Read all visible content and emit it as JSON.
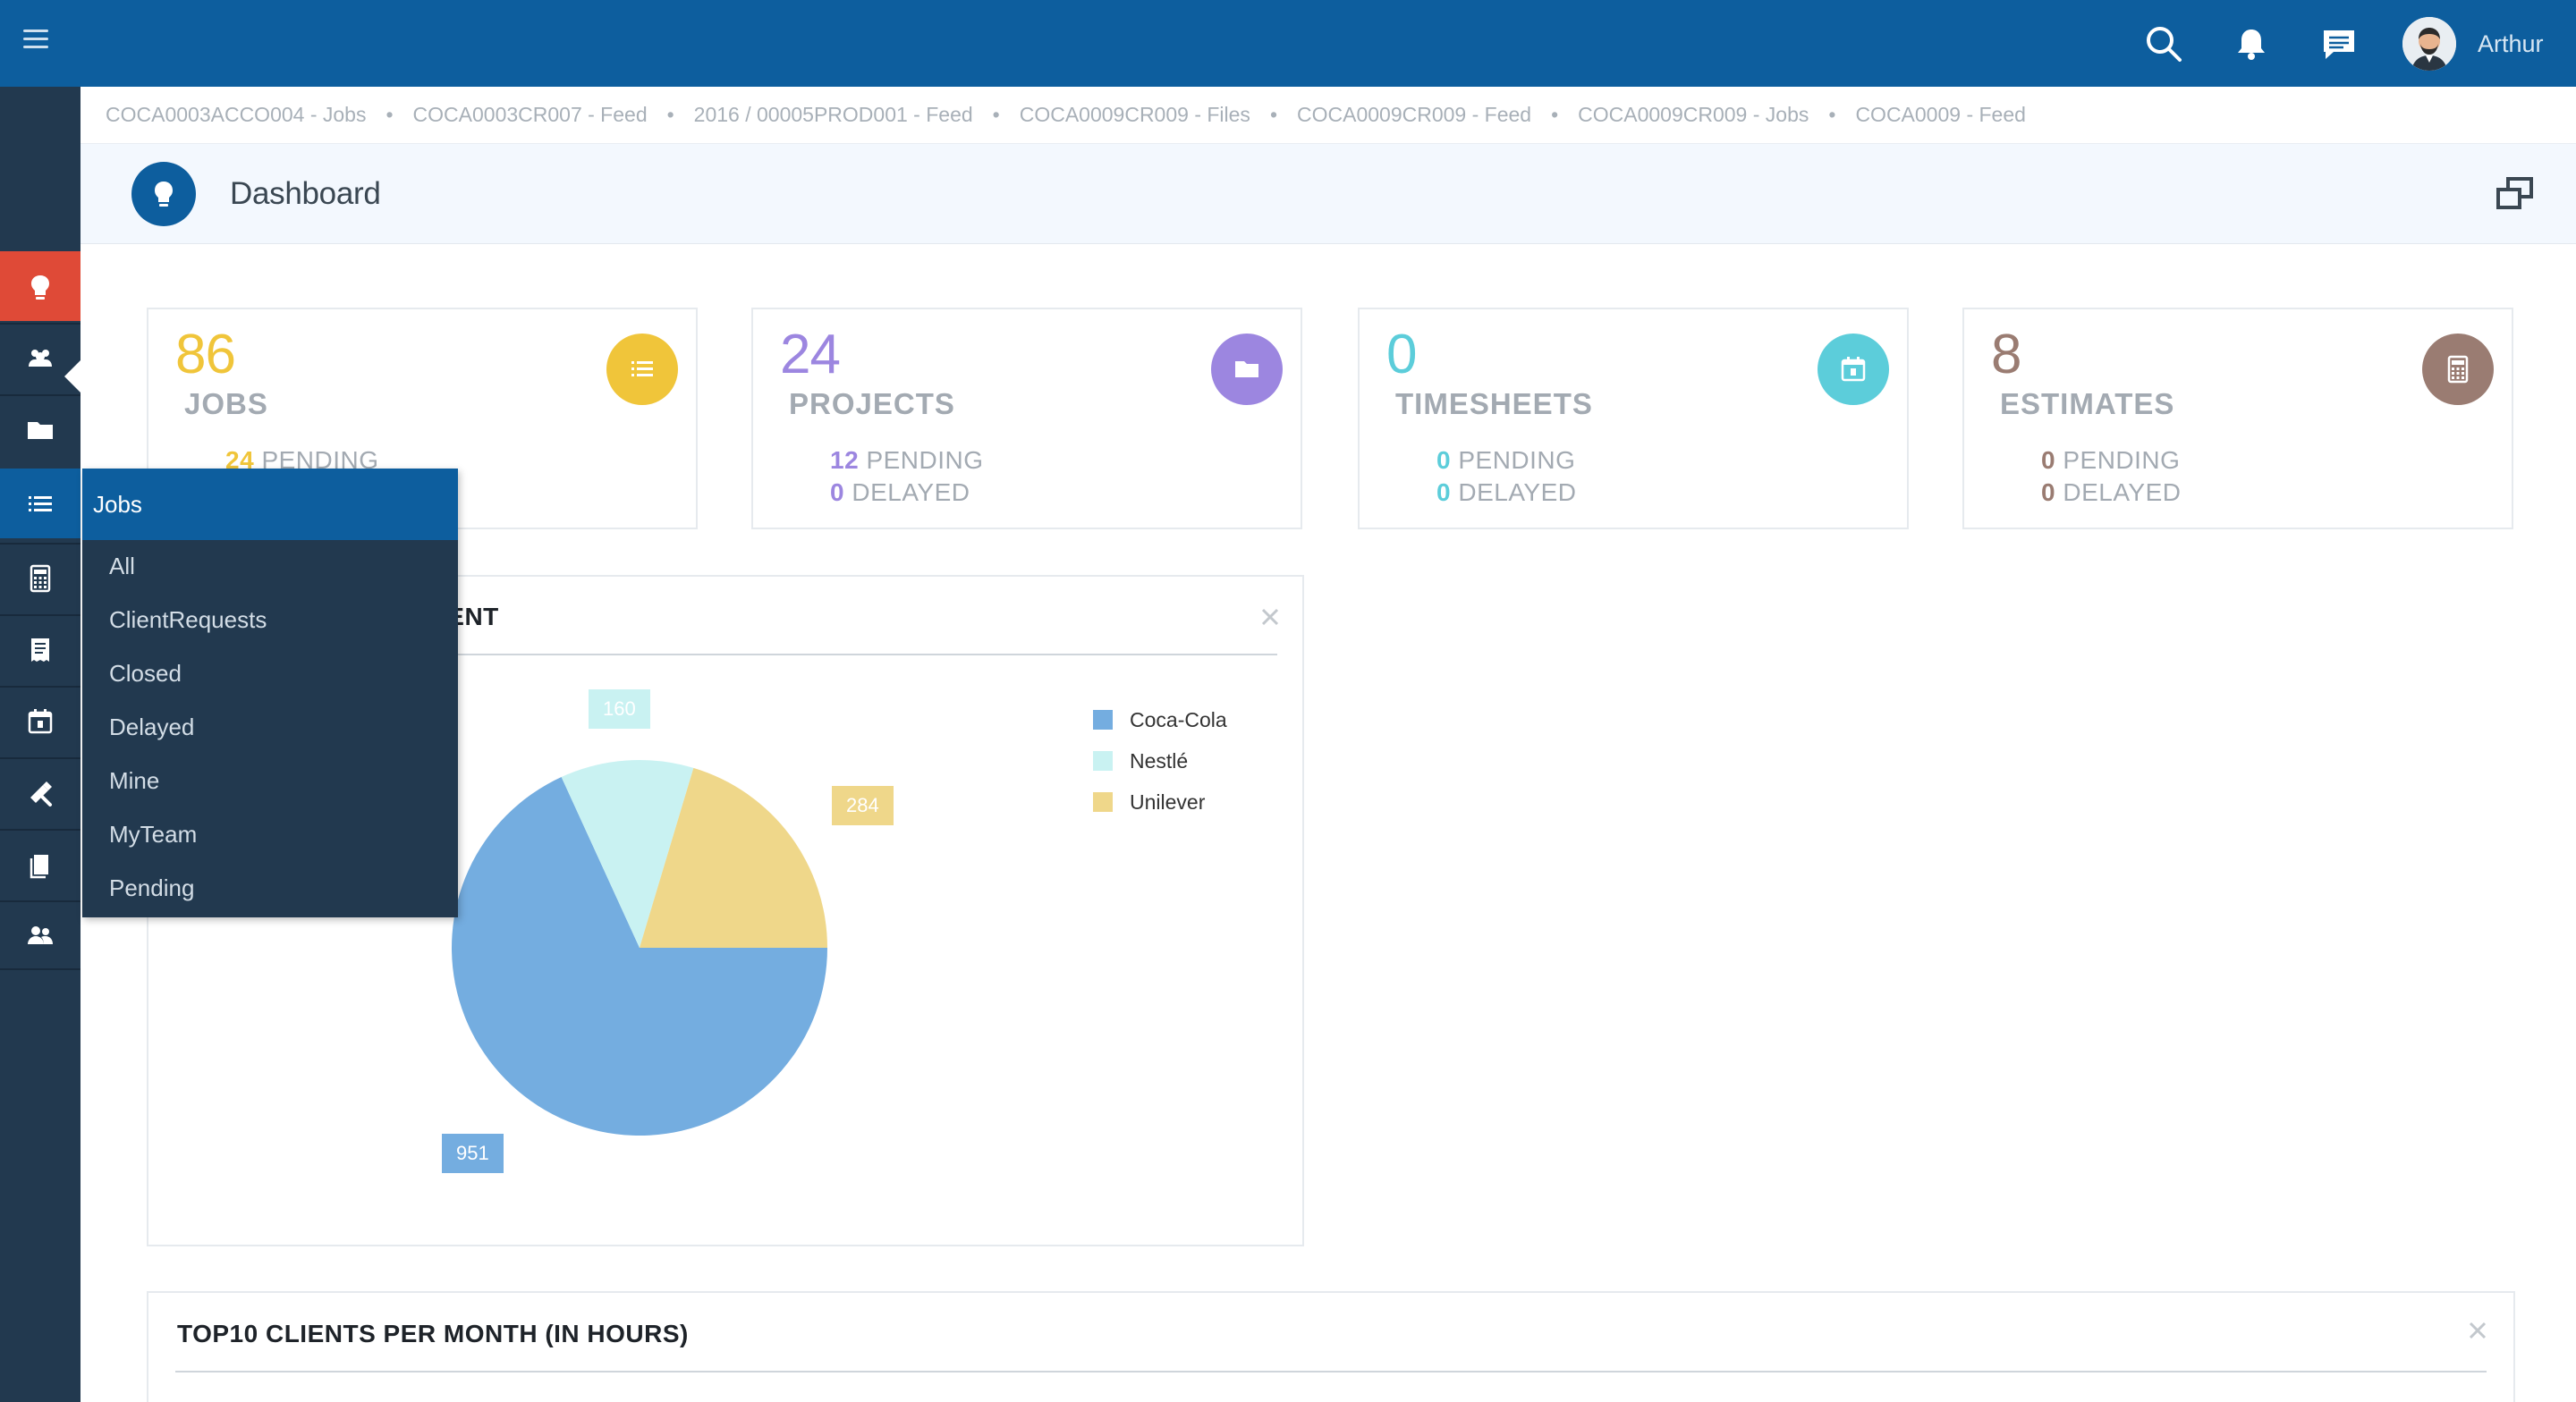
{
  "topbar": {
    "user_name": "Arthur",
    "icons": [
      "menu-icon",
      "search-icon",
      "bell-icon",
      "chat-icon"
    ]
  },
  "breadcrumbs": [
    "COCA0003ACCO004 - Jobs",
    "COCA0003CR007 - Feed",
    "2016 / 00005PROD001 - Feed",
    "COCA0009CR009 - Files",
    "COCA0009CR009 - Feed",
    "COCA0009CR009 - Jobs",
    "COCA0009 - Feed"
  ],
  "breadcrumb_separator": "•",
  "page": {
    "title": "Dashboard"
  },
  "sidebar": {
    "items": [
      "dashboard-icon",
      "clients-icon",
      "projects-folder-icon",
      "jobs-list-icon",
      "estimates-calculator-icon",
      "receipt-icon",
      "timesheet-calendar-icon",
      "tools-icon",
      "documents-icon",
      "team-icon"
    ],
    "active": "dashboard-icon"
  },
  "cards": [
    {
      "number": "86",
      "label": "JOBS",
      "pending_count": "24",
      "pending_label": "PENDING",
      "color": "#f0c53a",
      "icon": "list-icon"
    },
    {
      "number": "24",
      "label": "PROJECTS",
      "pending_count": "12",
      "pending_label": "PENDING",
      "delayed_count": "0",
      "delayed_label": "DELAYED",
      "color": "#9c86e0",
      "icon": "folder-icon"
    },
    {
      "number": "0",
      "label": "TIMESHEETS",
      "pending_count": "0",
      "pending_label": "PENDING",
      "delayed_count": "0",
      "delayed_label": "DELAYED",
      "color": "#5ccdda",
      "icon": "calendar-icon"
    },
    {
      "number": "8",
      "label": "ESTIMATES",
      "pending_count": "0",
      "pending_label": "PENDING",
      "delayed_count": "0",
      "delayed_label": "DELAYED",
      "color": "#9a7c72",
      "icon": "calculator-icon"
    }
  ],
  "pie_panel": {
    "title_visible": "IENT",
    "close": "×"
  },
  "bottom_panel": {
    "title": "TOP10 CLIENTS PER MONTH (IN HOURS)",
    "close": "×"
  },
  "flyout": {
    "header": "Jobs",
    "items": [
      "All",
      "ClientRequests",
      "Closed",
      "Delayed",
      "Mine",
      "MyTeam",
      "Pending"
    ]
  },
  "chart_data": {
    "type": "pie",
    "categories": [
      "Coca-Cola",
      "Nestlé",
      "Unilever"
    ],
    "values": [
      951,
      160,
      284
    ],
    "colors": [
      "#74ade0",
      "#c9f2f2",
      "#efd78a"
    ],
    "labels": [
      "951",
      "160",
      "284"
    ],
    "legend": "top-right",
    "start_angle_deg": 0
  }
}
